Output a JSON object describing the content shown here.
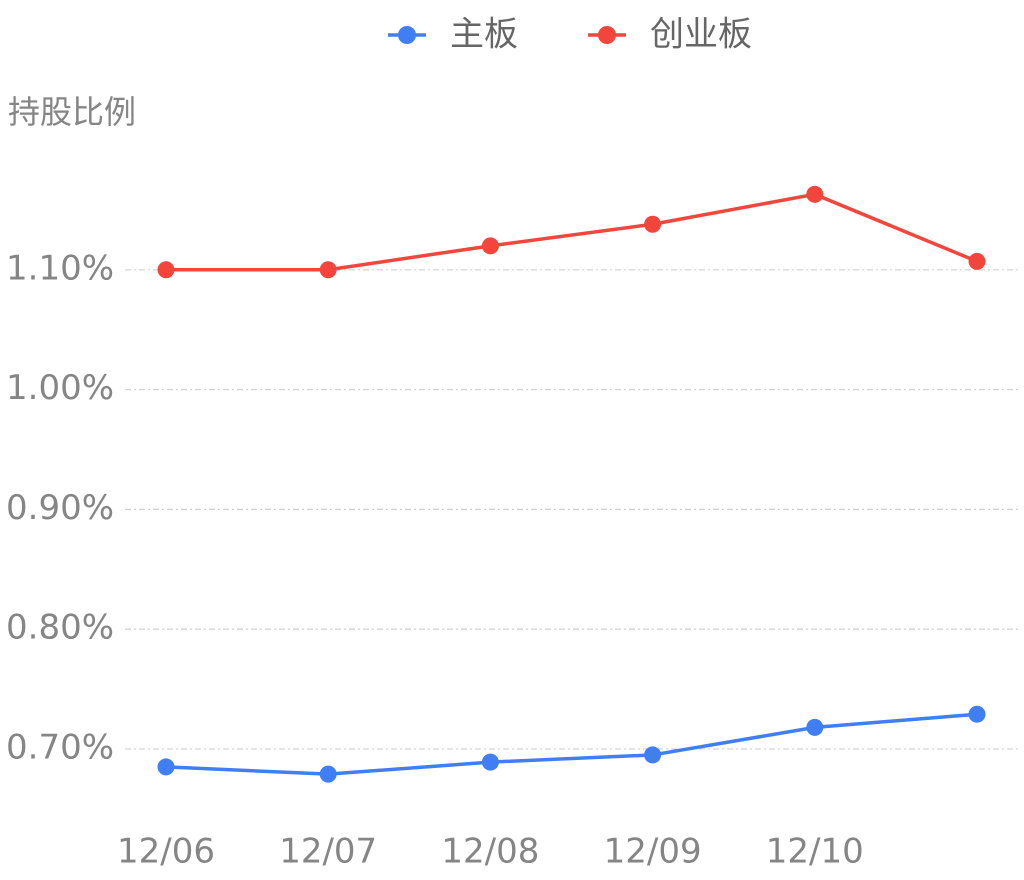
{
  "chart_data": {
    "type": "line",
    "y_label": "持股比例",
    "categories": [
      "12/06",
      "12/07",
      "12/08",
      "12/09",
      "12/10",
      null
    ],
    "series": [
      {
        "name": "主板",
        "color": "#3f7ef3",
        "values": [
          0.685,
          0.679,
          0.689,
          0.695,
          0.718,
          0.729
        ]
      },
      {
        "name": "创业板",
        "color": "#f2463c",
        "values": [
          1.1,
          1.1,
          1.12,
          1.138,
          1.163,
          1.107
        ]
      }
    ],
    "ylim": [
      0.63,
      1.2
    ],
    "yticks": [
      {
        "value": 0.7,
        "label": "0.70%"
      },
      {
        "value": 0.8,
        "label": "0.80%"
      },
      {
        "value": 0.9,
        "label": "0.90%"
      },
      {
        "value": 1.0,
        "label": "1.00%"
      },
      {
        "value": 1.1,
        "label": "1.10%"
      }
    ],
    "grid": true
  }
}
